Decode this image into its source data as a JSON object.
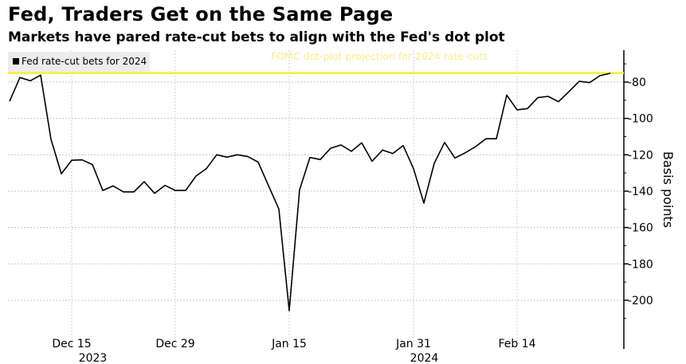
{
  "header": {
    "title": "Fed, Traders Get on the Same Page",
    "subtitle": "Markets have pared rate-cut bets to align with the Fed's dot plot"
  },
  "chart_data": {
    "type": "line",
    "title": "Fed, Traders Get on the Same Page",
    "subtitle": "Markets have pared rate-cut bets to align with the Fed's dot plot",
    "ylabel": "Basis points",
    "xlabel": "",
    "ylim": [
      -213,
      -64
    ],
    "yticks": [
      -80,
      -100,
      -120,
      -140,
      -160,
      -180,
      -200
    ],
    "ytick_labels": [
      "-80",
      "-100",
      "-120",
      "-140",
      "-160",
      "-180",
      "-200"
    ],
    "grid": true,
    "legend_position": "top-left",
    "x_ticks": [
      {
        "label": "Dec 15",
        "index": 6
      },
      {
        "label": "Dec 29",
        "index": 16
      },
      {
        "label": "Jan 15",
        "index": 27
      },
      {
        "label": "Jan 31",
        "index": 39
      },
      {
        "label": "Feb 14",
        "index": 49
      }
    ],
    "year_labels": [
      {
        "label": "2023",
        "index": 6.5
      },
      {
        "label": "2024",
        "index": 38.5
      }
    ],
    "series": [
      {
        "name": "Fed rate-cut bets for 2024",
        "color": "#000000",
        "values": [
          -90.6,
          -77.5,
          -79.3,
          -76.2,
          -111.5,
          -130.4,
          -123,
          -122.8,
          -125.4,
          -139.6,
          -137.1,
          -140.4,
          -140.4,
          -134.8,
          -141.2,
          -136.8,
          -139.6,
          -139.6,
          -131.7,
          -127.6,
          -120,
          -121.3,
          -120,
          -121,
          -124,
          -137,
          -149.8,
          -205.7,
          -139.3,
          -121.5,
          -122.6,
          -116.4,
          -114.6,
          -118.1,
          -113.4,
          -123.6,
          -117.4,
          -119.3,
          -114.9,
          -127.6,
          -146.6,
          -124.7,
          -113.2,
          -121.8,
          -118.9,
          -115.5,
          -111.2,
          -111.2,
          -87.2,
          -95.3,
          -94.6,
          -88.6,
          -87.9,
          -90.8,
          -85.3,
          -79.6,
          -80.3,
          -76.5,
          -75.2
        ]
      }
    ],
    "reference_line": {
      "label": "FOMC dot-plot projection for 2024 rate cuts",
      "value": -75,
      "color": "#f5ee2a"
    }
  }
}
